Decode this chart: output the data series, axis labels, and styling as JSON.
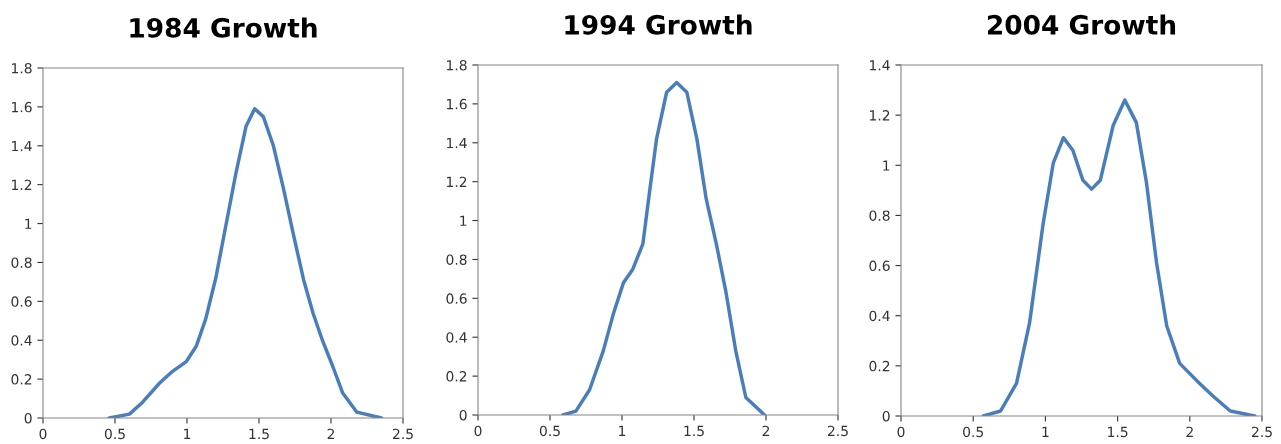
{
  "chart_data": [
    {
      "type": "line",
      "title": "1984 Growth",
      "xlim": [
        0,
        2.5
      ],
      "xticks": [
        0,
        0.5,
        1,
        1.5,
        2,
        2.5
      ],
      "ylim": [
        0,
        1.8
      ],
      "yticks": [
        0,
        0.2,
        0.4,
        0.6,
        0.8,
        1,
        1.2,
        1.4,
        1.6,
        1.8
      ],
      "grid": false,
      "marker": "none",
      "line_style": "solid",
      "series": [
        {
          "color": "#4a7ebb",
          "x": [
            0.46,
            0.6,
            0.69,
            0.81,
            0.9,
            0.995,
            1.065,
            1.13,
            1.2,
            1.27,
            1.34,
            1.41,
            1.47,
            1.53,
            1.6,
            1.67,
            1.74,
            1.81,
            1.875,
            1.94,
            2.01,
            2.08,
            2.18,
            2.35
          ],
          "values": [
            0,
            0.02,
            0.08,
            0.18,
            0.24,
            0.29,
            0.37,
            0.51,
            0.72,
            0.99,
            1.26,
            1.5,
            1.59,
            1.55,
            1.4,
            1.18,
            0.94,
            0.71,
            0.54,
            0.4,
            0.27,
            0.13,
            0.03,
            0
          ]
        }
      ]
    },
    {
      "type": "line",
      "title": "1994 Growth",
      "xlim": [
        0,
        2.5
      ],
      "xticks": [
        0,
        0.5,
        1,
        1.5,
        2,
        2.5
      ],
      "ylim": [
        0,
        1.8
      ],
      "yticks": [
        0,
        0.2,
        0.4,
        0.6,
        0.8,
        1,
        1.2,
        1.4,
        1.6,
        1.8
      ],
      "grid": false,
      "marker": "none",
      "line_style": "solid",
      "series": [
        {
          "color": "#4a7ebb",
          "x": [
            0.59,
            0.68,
            0.775,
            0.87,
            0.94,
            1.01,
            1.075,
            1.145,
            1.19,
            1.24,
            1.31,
            1.38,
            1.45,
            1.52,
            1.585,
            1.655,
            1.72,
            1.79,
            1.86,
            1.99
          ],
          "values": [
            0,
            0.02,
            0.13,
            0.33,
            0.52,
            0.68,
            0.75,
            0.88,
            1.14,
            1.42,
            1.66,
            1.71,
            1.66,
            1.42,
            1.11,
            0.88,
            0.64,
            0.33,
            0.09,
            0
          ]
        }
      ]
    },
    {
      "type": "line",
      "title": "2004 Growth",
      "xlim": [
        0,
        2.5
      ],
      "xticks": [
        0,
        0.5,
        1,
        1.5,
        2,
        2.5
      ],
      "ylim": [
        0,
        1.4
      ],
      "yticks": [
        0,
        0.2,
        0.4,
        0.6,
        0.8,
        1,
        1.2,
        1.4
      ],
      "grid": false,
      "marker": "none",
      "line_style": "solid",
      "series": [
        {
          "color": "#4a7ebb",
          "x": [
            0.57,
            0.69,
            0.8,
            0.89,
            0.985,
            1.055,
            1.125,
            1.19,
            1.26,
            1.32,
            1.38,
            1.47,
            1.55,
            1.63,
            1.7,
            1.77,
            1.84,
            1.93,
            2.05,
            2.16,
            2.28,
            2.45
          ],
          "values": [
            0,
            0.02,
            0.13,
            0.37,
            0.77,
            1.01,
            1.11,
            1.06,
            0.94,
            0.905,
            0.94,
            1.16,
            1.26,
            1.17,
            0.93,
            0.61,
            0.36,
            0.21,
            0.14,
            0.08,
            0.02,
            0
          ]
        }
      ]
    }
  ]
}
